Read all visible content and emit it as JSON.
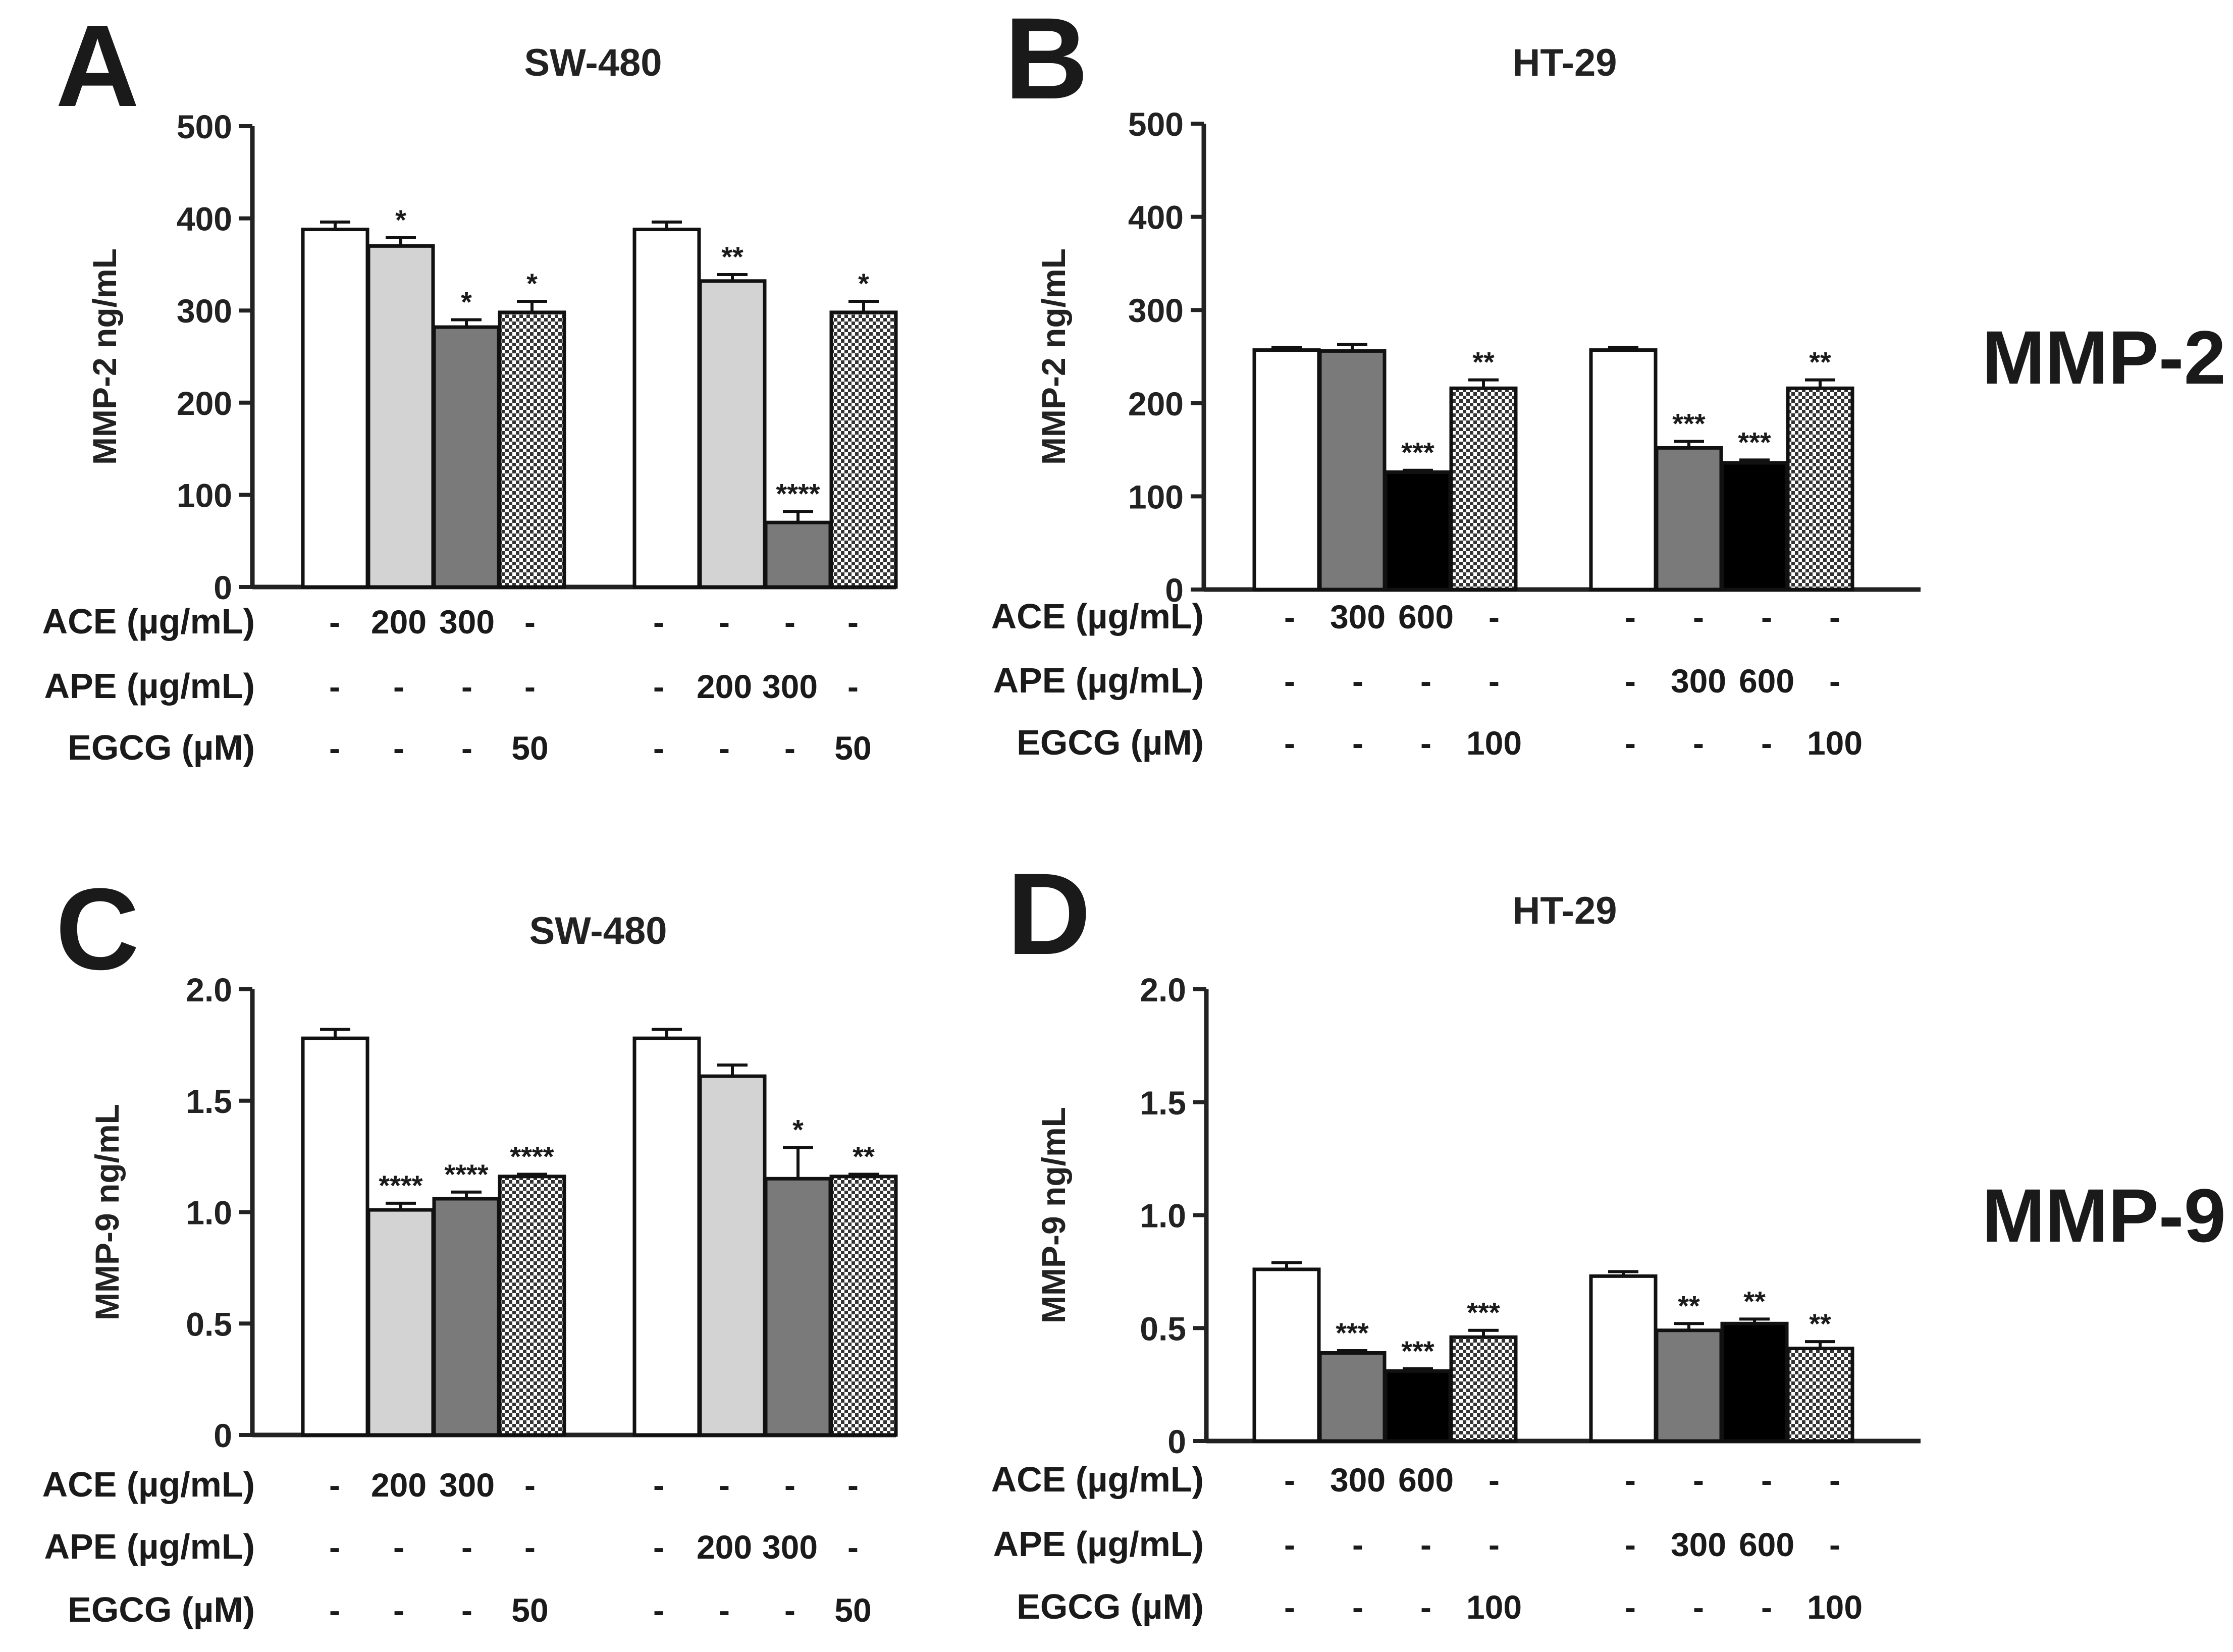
{
  "figure_labels": {
    "mmp2": "MMP-2",
    "mmp9": "MMP-9"
  },
  "patterns": {
    "white": "#ffffff",
    "light": "#d3d3d3",
    "gray": "#7a7a7a",
    "black": "#000000",
    "check_dark": "#333333",
    "check_light": "#ffffff"
  },
  "chart_data": [
    {
      "type": "bar",
      "panel": "A",
      "title": "SW-480",
      "ylabel": "MMP-2 ng/mL",
      "ylim": [
        0,
        500
      ],
      "yticks": [
        "0",
        "100",
        "200",
        "300",
        "400",
        "500"
      ],
      "ytick_values": [
        0,
        100,
        200,
        300,
        400,
        500
      ],
      "groups": [
        {
          "bars": [
            {
              "value": 388,
              "error": 8,
              "fill": "white",
              "sig": ""
            },
            {
              "value": 370,
              "error": 9,
              "fill": "light",
              "sig": "*"
            },
            {
              "value": 282,
              "error": 8,
              "fill": "gray",
              "sig": "*"
            },
            {
              "value": 298,
              "error": 12,
              "fill": "check",
              "sig": "*"
            }
          ]
        },
        {
          "bars": [
            {
              "value": 388,
              "error": 8,
              "fill": "white",
              "sig": ""
            },
            {
              "value": 332,
              "error": 7,
              "fill": "light",
              "sig": "**"
            },
            {
              "value": 70,
              "error": 12,
              "fill": "gray",
              "sig": "****"
            },
            {
              "value": 298,
              "error": 12,
              "fill": "check",
              "sig": "*"
            }
          ]
        }
      ],
      "table": [
        {
          "label": "ACE (µg/mL)",
          "cells": [
            "-",
            "200",
            "300",
            "-",
            "-",
            "-",
            "-",
            "-"
          ]
        },
        {
          "label": "APE (µg/mL)",
          "cells": [
            "-",
            "-",
            "-",
            "-",
            "-",
            "200",
            "300",
            "-"
          ]
        },
        {
          "label": "EGCG (µM)",
          "cells": [
            "-",
            "-",
            "-",
            "50",
            "-",
            "-",
            "-",
            "50"
          ]
        }
      ]
    },
    {
      "type": "bar",
      "panel": "B",
      "title": "HT-29",
      "ylabel": "MMP-2 ng/mL",
      "ylim": [
        0,
        500
      ],
      "yticks": [
        "0",
        "100",
        "200",
        "300",
        "400",
        "500"
      ],
      "ytick_values": [
        0,
        100,
        200,
        300,
        400,
        500
      ],
      "groups": [
        {
          "bars": [
            {
              "value": 257,
              "error": 3,
              "fill": "white",
              "sig": ""
            },
            {
              "value": 256,
              "error": 7,
              "fill": "gray",
              "sig": ""
            },
            {
              "value": 126,
              "error": 2,
              "fill": "black",
              "sig": "***"
            },
            {
              "value": 216,
              "error": 9,
              "fill": "check",
              "sig": "**"
            }
          ]
        },
        {
          "bars": [
            {
              "value": 257,
              "error": 3,
              "fill": "white",
              "sig": ""
            },
            {
              "value": 152,
              "error": 7,
              "fill": "gray",
              "sig": "***"
            },
            {
              "value": 136,
              "error": 3,
              "fill": "black",
              "sig": "***"
            },
            {
              "value": 216,
              "error": 9,
              "fill": "check",
              "sig": "**"
            }
          ]
        }
      ],
      "table": [
        {
          "label": "ACE (µg/mL)",
          "cells": [
            "-",
            "300",
            "600",
            "-",
            "-",
            "-",
            "-",
            "-"
          ]
        },
        {
          "label": "APE (µg/mL)",
          "cells": [
            "-",
            "-",
            "-",
            "-",
            "-",
            "300",
            "600",
            "-"
          ]
        },
        {
          "label": "EGCG (µM)",
          "cells": [
            "-",
            "-",
            "-",
            "100",
            "-",
            "-",
            "-",
            "100"
          ]
        }
      ]
    },
    {
      "type": "bar",
      "panel": "C",
      "title": "SW-480",
      "ylabel": "MMP-9 ng/mL",
      "ylim": [
        0,
        2.0
      ],
      "yticks": [
        "0",
        "0.5",
        "1.0",
        "1.5",
        "2.0"
      ],
      "ytick_values": [
        0,
        0.5,
        1.0,
        1.5,
        2.0
      ],
      "groups": [
        {
          "bars": [
            {
              "value": 1.78,
              "error": 0.04,
              "fill": "white",
              "sig": ""
            },
            {
              "value": 1.01,
              "error": 0.03,
              "fill": "light",
              "sig": "****"
            },
            {
              "value": 1.06,
              "error": 0.03,
              "fill": "gray",
              "sig": "****"
            },
            {
              "value": 1.16,
              "error": 0.01,
              "fill": "check",
              "sig": "****"
            }
          ]
        },
        {
          "bars": [
            {
              "value": 1.78,
              "error": 0.04,
              "fill": "white",
              "sig": ""
            },
            {
              "value": 1.61,
              "error": 0.05,
              "fill": "light",
              "sig": ""
            },
            {
              "value": 1.15,
              "error": 0.14,
              "fill": "gray",
              "sig": "*"
            },
            {
              "value": 1.16,
              "error": 0.01,
              "fill": "check",
              "sig": "**"
            }
          ]
        }
      ],
      "table": [
        {
          "label": "ACE (µg/mL)",
          "cells": [
            "-",
            "200",
            "300",
            "-",
            "-",
            "-",
            "-",
            "-"
          ]
        },
        {
          "label": "APE (µg/mL)",
          "cells": [
            "-",
            "-",
            "-",
            "-",
            "-",
            "200",
            "300",
            "-"
          ]
        },
        {
          "label": "EGCG (µM)",
          "cells": [
            "-",
            "-",
            "-",
            "50",
            "-",
            "-",
            "-",
            "50"
          ]
        }
      ]
    },
    {
      "type": "bar",
      "panel": "D",
      "title": "HT-29",
      "ylabel": "MMP-9 ng/mL",
      "ylim": [
        0,
        2.0
      ],
      "yticks": [
        "0",
        "0.5",
        "1.0",
        "1.5",
        "2.0"
      ],
      "ytick_values": [
        0,
        0.5,
        1.0,
        1.5,
        2.0
      ],
      "groups": [
        {
          "bars": [
            {
              "value": 0.76,
              "error": 0.03,
              "fill": "white",
              "sig": ""
            },
            {
              "value": 0.39,
              "error": 0.01,
              "fill": "gray",
              "sig": "***"
            },
            {
              "value": 0.31,
              "error": 0.01,
              "fill": "black",
              "sig": "***"
            },
            {
              "value": 0.46,
              "error": 0.03,
              "fill": "check",
              "sig": "***"
            }
          ]
        },
        {
          "bars": [
            {
              "value": 0.73,
              "error": 0.02,
              "fill": "white",
              "sig": ""
            },
            {
              "value": 0.49,
              "error": 0.03,
              "fill": "gray",
              "sig": "**"
            },
            {
              "value": 0.52,
              "error": 0.02,
              "fill": "black",
              "sig": "**"
            },
            {
              "value": 0.41,
              "error": 0.03,
              "fill": "check",
              "sig": "**"
            }
          ]
        }
      ],
      "table": [
        {
          "label": "ACE (µg/mL)",
          "cells": [
            "-",
            "300",
            "600",
            "-",
            "-",
            "-",
            "-",
            "-"
          ]
        },
        {
          "label": "APE (µg/mL)",
          "cells": [
            "-",
            "-",
            "-",
            "-",
            "-",
            "300",
            "600",
            "-"
          ]
        },
        {
          "label": "EGCG (µM)",
          "cells": [
            "-",
            "-",
            "-",
            "100",
            "-",
            "-",
            "-",
            "100"
          ]
        }
      ]
    }
  ]
}
